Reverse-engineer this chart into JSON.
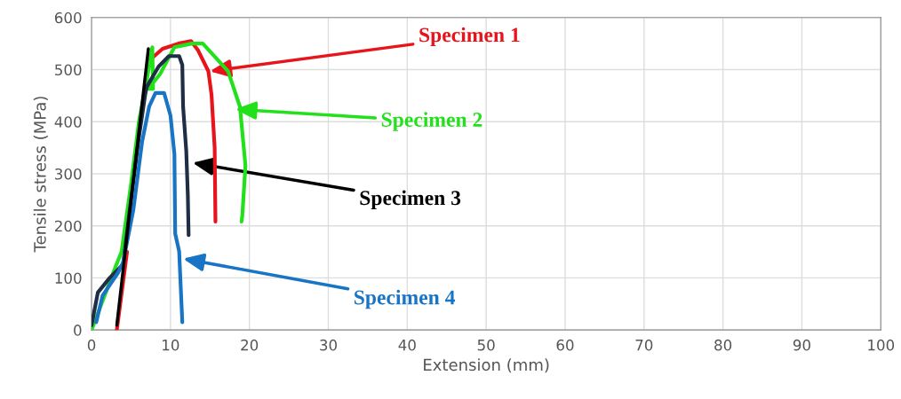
{
  "chart_data": {
    "type": "line",
    "xlabel": "Extension (mm)",
    "ylabel": "Tensile stress (MPa)",
    "xlim": [
      0,
      100
    ],
    "xticks": [
      0,
      10,
      20,
      30,
      40,
      50,
      60,
      70,
      80,
      90,
      100
    ],
    "ylim": [
      0,
      600
    ],
    "yticks": [
      0,
      100,
      200,
      300,
      400,
      500,
      600
    ],
    "grid": true,
    "line_style": "solid",
    "series": [
      {
        "color": "#e8141c",
        "x": [
          3.2,
          4.5,
          5.5,
          6.5,
          7.5,
          9,
          11,
          12.6,
          13.5,
          14.8,
          15.2,
          15.6,
          15.7
        ],
        "values": [
          0,
          150,
          null,
          null,
          520,
          540,
          550,
          555,
          537,
          497,
          452,
          350,
          208
        ]
      },
      {
        "color": "#22e01a",
        "x": [
          0,
          1.5,
          3,
          3.8,
          5,
          6,
          7,
          7.7,
          7.8,
          7.2,
          8.7,
          10.5,
          12.7,
          14.1,
          17.3,
          18.8,
          19.5,
          19.1,
          19.0
        ],
        "values": [
          0,
          60,
          120,
          150,
          280,
          400,
          480,
          543,
          463,
          463,
          492,
          543,
          550,
          550,
          497,
          429,
          316,
          219,
          208
        ]
      },
      {
        "color": "#1f2d45",
        "x": [
          0,
          0.8,
          2.3,
          4.0,
          5.0,
          6.0,
          6.8,
          7.0,
          8.5,
          9.8,
          11.1,
          11.5,
          11.6,
          12.0,
          12.2,
          12.3
        ],
        "values": [
          9,
          72,
          100,
          126,
          250,
          370,
          452,
          467,
          506,
          526,
          526,
          509,
          429,
          344,
          259,
          182
        ]
      },
      {
        "color": "#1874c4",
        "x": [
          0.6,
          1.4,
          3.4,
          4.0,
          5.3,
          6.4,
          7.3,
          8.1,
          9.2,
          10.0,
          10.5,
          10.6,
          11.1,
          11.5
        ],
        "values": [
          15,
          66,
          111,
          130,
          231,
          361,
          429,
          455,
          455,
          412,
          338,
          185,
          151,
          15
        ]
      },
      {
        "color": "#000000",
        "x": [
          3.2,
          7.2
        ],
        "values": [
          9,
          540
        ]
      }
    ],
    "annotations": [
      {
        "text": "Specimen 1",
        "x": 15.0,
        "y": 497
      },
      {
        "text": "Specimen 2",
        "x": 18.2,
        "y": 424
      },
      {
        "text": "Specimen 3",
        "x": 12.8,
        "y": 321
      },
      {
        "text": "Specimen 4",
        "x": 11.6,
        "y": 137
      }
    ]
  }
}
